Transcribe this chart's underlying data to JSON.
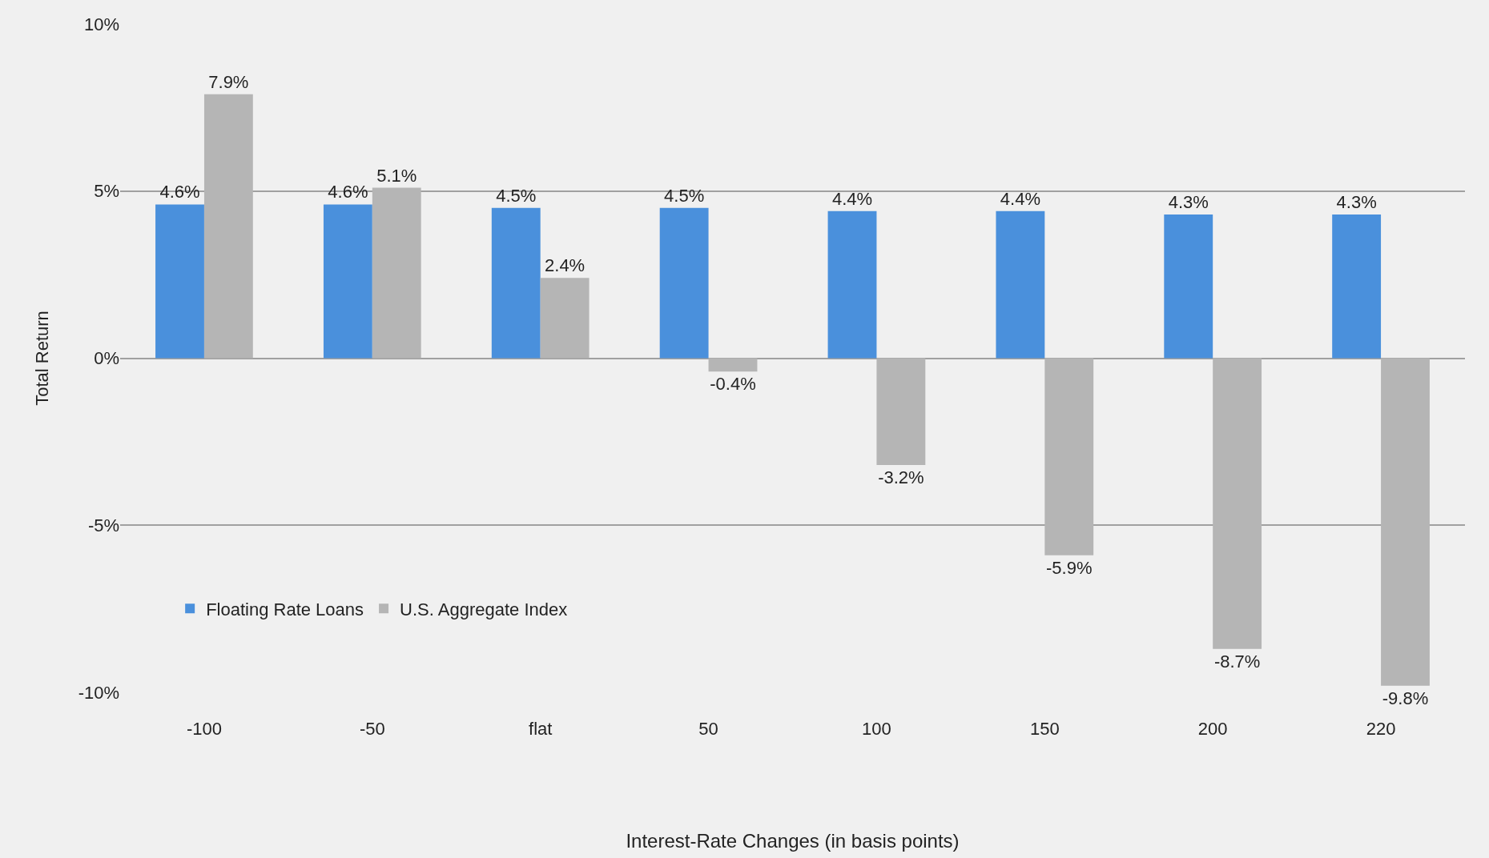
{
  "chart_data": {
    "type": "bar",
    "xlabel": "Interest-Rate Changes (in basis points)",
    "ylabel": "Total Return",
    "categories": [
      "-100",
      "-50",
      "flat",
      "50",
      "100",
      "150",
      "200",
      "220"
    ],
    "series": [
      {
        "name": "Floating Rate Loans",
        "color": "#4a90dc",
        "values": [
          4.6,
          4.6,
          4.5,
          4.5,
          4.4,
          4.4,
          4.3,
          4.3
        ],
        "value_labels": [
          "4.6%",
          "4.6%",
          "4.5%",
          "4.5%",
          "4.4%",
          "4.4%",
          "4.3%",
          "4.3%"
        ]
      },
      {
        "name": "U.S. Aggregate Index",
        "color": "#b5b5b5",
        "values": [
          7.9,
          5.1,
          2.4,
          -0.4,
          -3.2,
          -5.9,
          -8.7,
          -9.8
        ],
        "value_labels": [
          "7.9%",
          "5.1%",
          "2.4%",
          "-0.4%",
          "-3.2%",
          "-5.9%",
          "-8.7%",
          "-9.8%"
        ]
      }
    ],
    "ylim": [
      -10,
      10
    ],
    "yticks": [
      {
        "value": -10,
        "label": "-10%"
      },
      {
        "value": -5,
        "label": "-5%"
      },
      {
        "value": 0,
        "label": "0%"
      },
      {
        "value": 5,
        "label": "5%"
      },
      {
        "value": 10,
        "label": "10%"
      }
    ],
    "grid": "y",
    "legend": "bottom left"
  }
}
